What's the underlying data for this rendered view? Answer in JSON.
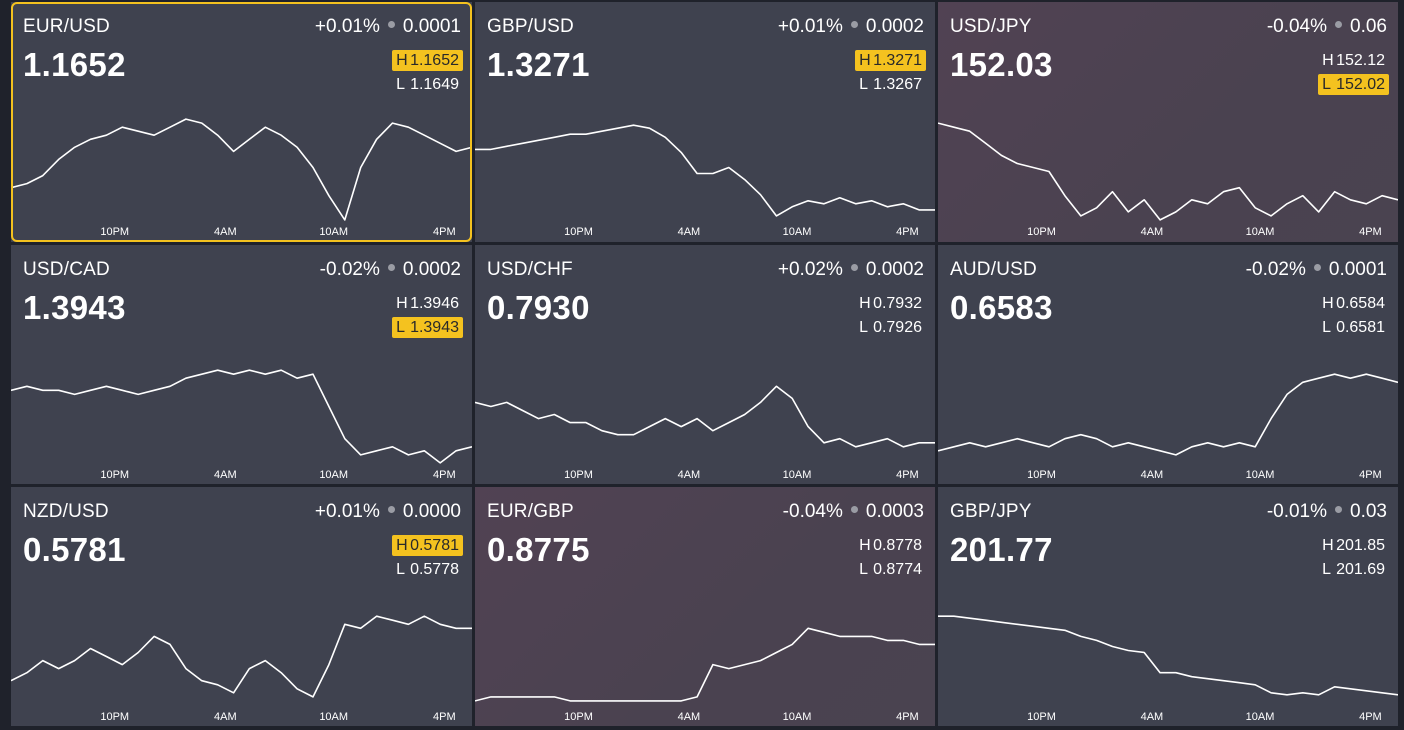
{
  "tiles": [
    {
      "symbol": "EUR/USD",
      "change_pct": "+0.01%",
      "change_abs": "0.0001",
      "price": "1.1652",
      "high": "1.1652",
      "low": "1.1649",
      "high_label": "H",
      "low_label": "L",
      "high_hit": true,
      "low_hit": false,
      "selected": true,
      "tone": "neutral",
      "x_ticks": [
        "10PM",
        "4AM",
        "10AM",
        "4PM"
      ],
      "chart_data": {
        "type": "line",
        "y_range": [
          1.163,
          1.166
        ],
        "y": [
          1.164,
          1.1641,
          1.1643,
          1.1647,
          1.165,
          1.1652,
          1.1653,
          1.1655,
          1.1654,
          1.1653,
          1.1655,
          1.1657,
          1.1656,
          1.1653,
          1.1649,
          1.1652,
          1.1655,
          1.1653,
          1.165,
          1.1645,
          1.1638,
          1.1632,
          1.1645,
          1.1652,
          1.1656,
          1.1655,
          1.1653,
          1.1651,
          1.1649,
          1.165
        ]
      }
    },
    {
      "symbol": "GBP/USD",
      "change_pct": "+0.01%",
      "change_abs": "0.0002",
      "price": "1.3271",
      "high": "1.3271",
      "low": "1.3267",
      "high_label": "H",
      "low_label": "L",
      "high_hit": true,
      "low_hit": false,
      "selected": false,
      "tone": "neutral",
      "x_ticks": [
        "10PM",
        "4AM",
        "10AM",
        "4PM"
      ],
      "chart_data": {
        "type": "line",
        "y_range": [
          1.324,
          1.328
        ],
        "y": [
          1.3266,
          1.3266,
          1.3267,
          1.3268,
          1.3269,
          1.327,
          1.3271,
          1.3271,
          1.3272,
          1.3273,
          1.3274,
          1.3273,
          1.327,
          1.3265,
          1.3258,
          1.3258,
          1.326,
          1.3256,
          1.3251,
          1.3244,
          1.3247,
          1.3249,
          1.3248,
          1.325,
          1.3248,
          1.3249,
          1.3247,
          1.3248,
          1.3246,
          1.3246
        ]
      }
    },
    {
      "symbol": "USD/JPY",
      "change_pct": "-0.04%",
      "change_abs": "0.06",
      "price": "152.03",
      "high": "152.12",
      "low": "152.02",
      "high_label": "H",
      "low_label": "L",
      "high_hit": false,
      "low_hit": true,
      "selected": false,
      "tone": "red",
      "x_ticks": [
        "10PM",
        "4AM",
        "10AM",
        "4PM"
      ],
      "chart_data": {
        "type": "line",
        "y_range": [
          151.9,
          152.2
        ],
        "y": [
          152.16,
          152.15,
          152.14,
          152.11,
          152.08,
          152.06,
          152.05,
          152.04,
          151.98,
          151.93,
          151.95,
          151.99,
          151.94,
          151.97,
          151.92,
          151.94,
          151.97,
          151.96,
          151.99,
          152.0,
          151.95,
          151.93,
          151.96,
          151.98,
          151.94,
          151.99,
          151.97,
          151.96,
          151.98,
          151.97
        ]
      }
    },
    {
      "symbol": "USD/CAD",
      "change_pct": "-0.02%",
      "change_abs": "0.0002",
      "price": "1.3943",
      "high": "1.3946",
      "low": "1.3943",
      "high_label": "H",
      "low_label": "L",
      "high_hit": false,
      "low_hit": true,
      "selected": false,
      "tone": "neutral",
      "x_ticks": [
        "10PM",
        "4AM",
        "10AM",
        "4PM"
      ],
      "chart_data": {
        "type": "line",
        "y_range": [
          1.393,
          1.396
        ],
        "y": [
          1.395,
          1.3951,
          1.395,
          1.395,
          1.3949,
          1.395,
          1.3951,
          1.395,
          1.3949,
          1.395,
          1.3951,
          1.3953,
          1.3954,
          1.3955,
          1.3954,
          1.3955,
          1.3954,
          1.3955,
          1.3953,
          1.3954,
          1.3946,
          1.3938,
          1.3934,
          1.3935,
          1.3936,
          1.3934,
          1.3935,
          1.3932,
          1.3935,
          1.3936
        ]
      }
    },
    {
      "symbol": "USD/CHF",
      "change_pct": "+0.02%",
      "change_abs": "0.0002",
      "price": "0.7930",
      "high": "0.7932",
      "low": "0.7926",
      "high_label": "H",
      "low_label": "L",
      "high_hit": false,
      "low_hit": false,
      "selected": false,
      "tone": "neutral",
      "x_ticks": [
        "10PM",
        "4AM",
        "10AM",
        "4PM"
      ],
      "chart_data": {
        "type": "line",
        "y_range": [
          0.7915,
          0.7945
        ],
        "y": [
          0.7932,
          0.7931,
          0.7932,
          0.793,
          0.7928,
          0.7929,
          0.7927,
          0.7927,
          0.7925,
          0.7924,
          0.7924,
          0.7926,
          0.7928,
          0.7926,
          0.7928,
          0.7925,
          0.7927,
          0.7929,
          0.7932,
          0.7936,
          0.7933,
          0.7926,
          0.7922,
          0.7923,
          0.7921,
          0.7922,
          0.7923,
          0.7921,
          0.7922,
          0.7922
        ]
      }
    },
    {
      "symbol": "AUD/USD",
      "change_pct": "-0.02%",
      "change_abs": "0.0001",
      "price": "0.6583",
      "high": "0.6584",
      "low": "0.6581",
      "high_label": "H",
      "low_label": "L",
      "high_hit": false,
      "low_hit": false,
      "selected": false,
      "tone": "neutral",
      "x_ticks": [
        "10PM",
        "4AM",
        "10AM",
        "4PM"
      ],
      "chart_data": {
        "type": "line",
        "y_range": [
          0.657,
          0.66
        ],
        "y": [
          0.6575,
          0.6576,
          0.6577,
          0.6576,
          0.6577,
          0.6578,
          0.6577,
          0.6576,
          0.6578,
          0.6579,
          0.6578,
          0.6576,
          0.6577,
          0.6576,
          0.6575,
          0.6574,
          0.6576,
          0.6577,
          0.6576,
          0.6577,
          0.6576,
          0.6583,
          0.6589,
          0.6592,
          0.6593,
          0.6594,
          0.6593,
          0.6594,
          0.6593,
          0.6592
        ]
      }
    },
    {
      "symbol": "NZD/USD",
      "change_pct": "+0.01%",
      "change_abs": "0.0000",
      "price": "0.5781",
      "high": "0.5781",
      "low": "0.5778",
      "high_label": "H",
      "low_label": "L",
      "high_hit": true,
      "low_hit": false,
      "selected": false,
      "tone": "neutral",
      "x_ticks": [
        "10PM",
        "4AM",
        "10AM",
        "4PM"
      ],
      "chart_data": {
        "type": "line",
        "y_range": [
          0.576,
          0.579
        ],
        "y": [
          0.5768,
          0.577,
          0.5773,
          0.5771,
          0.5773,
          0.5776,
          0.5774,
          0.5772,
          0.5775,
          0.5779,
          0.5777,
          0.5771,
          0.5768,
          0.5767,
          0.5765,
          0.5771,
          0.5773,
          0.577,
          0.5766,
          0.5764,
          0.5772,
          0.5782,
          0.5781,
          0.5784,
          0.5783,
          0.5782,
          0.5784,
          0.5782,
          0.5781,
          0.5781
        ]
      }
    },
    {
      "symbol": "EUR/GBP",
      "change_pct": "-0.04%",
      "change_abs": "0.0003",
      "price": "0.8775",
      "high": "0.8778",
      "low": "0.8774",
      "high_label": "H",
      "low_label": "L",
      "high_hit": false,
      "low_hit": false,
      "selected": false,
      "tone": "red",
      "x_ticks": [
        "10PM",
        "4AM",
        "10AM",
        "4PM"
      ],
      "chart_data": {
        "type": "line",
        "y_range": [
          0.876,
          0.879
        ],
        "y": [
          0.8763,
          0.8764,
          0.8764,
          0.8764,
          0.8764,
          0.8764,
          0.8763,
          0.8763,
          0.8763,
          0.8763,
          0.8763,
          0.8763,
          0.8763,
          0.8763,
          0.8764,
          0.8772,
          0.8771,
          0.8772,
          0.8773,
          0.8775,
          0.8777,
          0.8781,
          0.878,
          0.8779,
          0.8779,
          0.8779,
          0.8778,
          0.8778,
          0.8777,
          0.8777
        ]
      }
    },
    {
      "symbol": "GBP/JPY",
      "change_pct": "-0.01%",
      "change_abs": "0.03",
      "price": "201.77",
      "high": "201.85",
      "low": "201.69",
      "high_label": "H",
      "low_label": "L",
      "high_hit": false,
      "low_hit": false,
      "selected": false,
      "tone": "neutral",
      "x_ticks": [
        "10PM",
        "4AM",
        "10AM",
        "4PM"
      ],
      "chart_data": {
        "type": "line",
        "y_range": [
          201.4,
          202.0
        ],
        "y": [
          201.88,
          201.88,
          201.87,
          201.86,
          201.85,
          201.84,
          201.83,
          201.82,
          201.81,
          201.78,
          201.76,
          201.73,
          201.71,
          201.7,
          201.6,
          201.6,
          201.58,
          201.57,
          201.56,
          201.55,
          201.54,
          201.5,
          201.49,
          201.5,
          201.49,
          201.53,
          201.52,
          201.51,
          201.5,
          201.49
        ]
      }
    }
  ]
}
